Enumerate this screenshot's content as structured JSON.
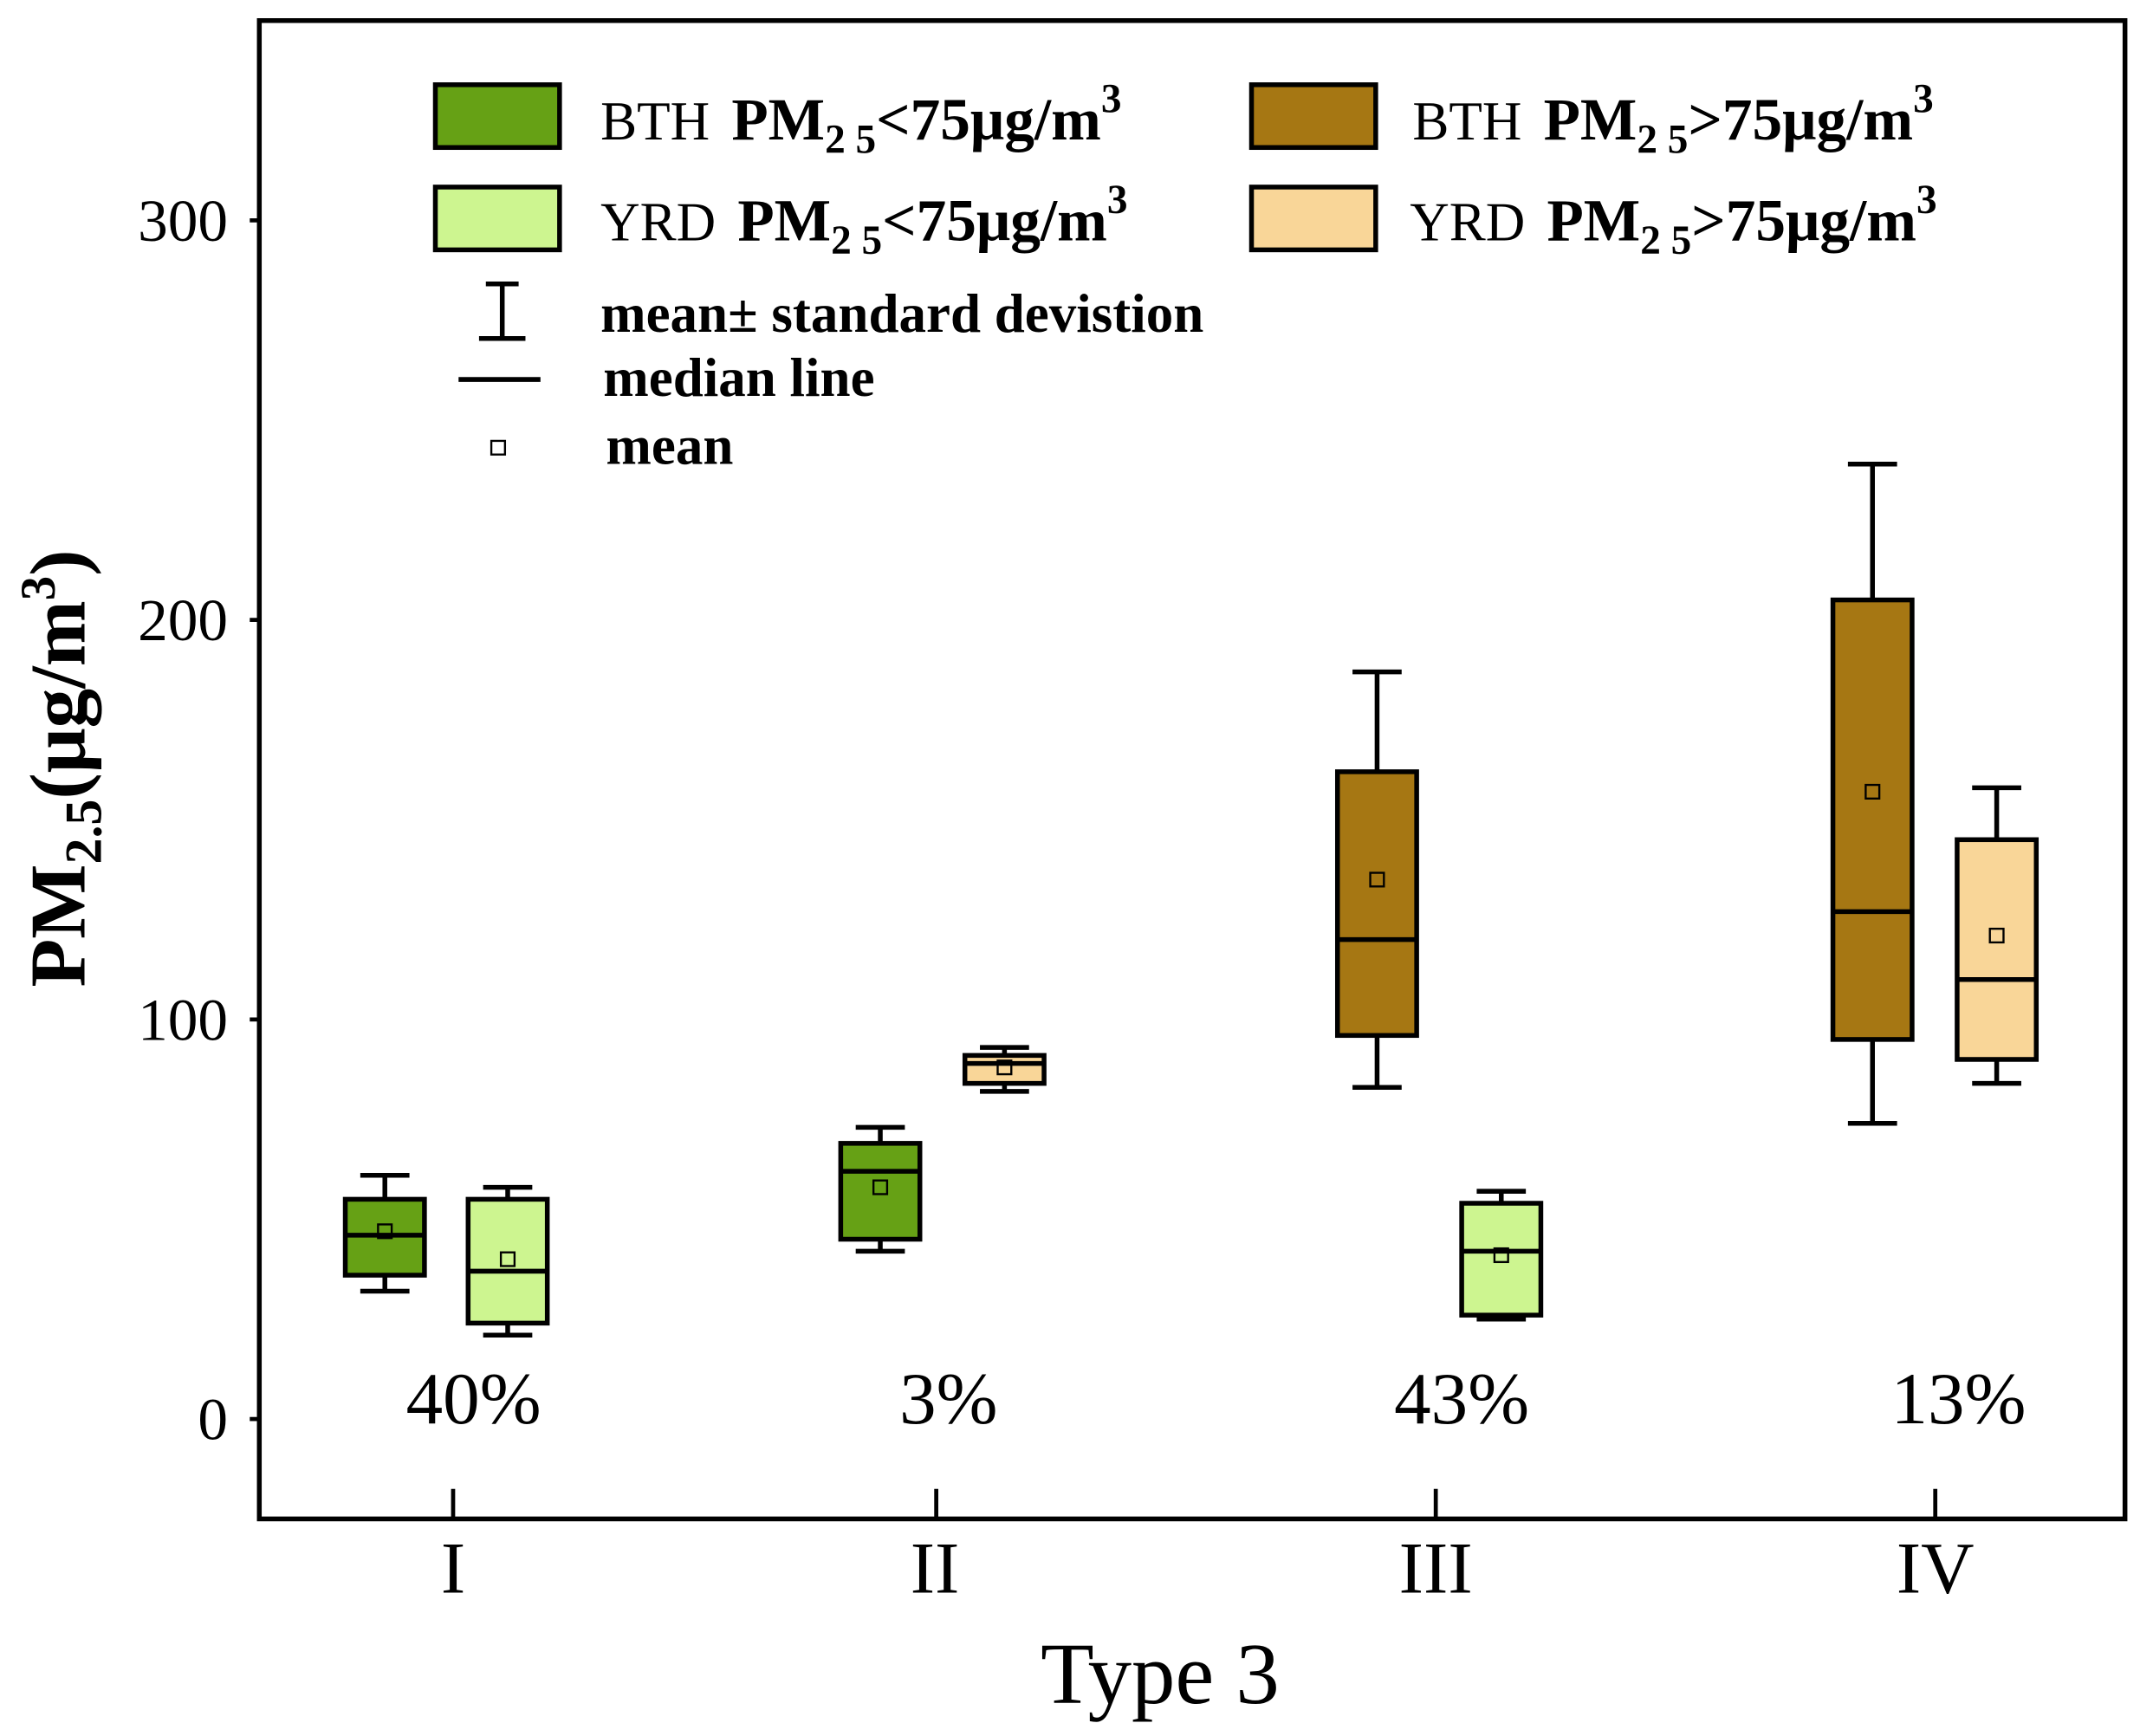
{
  "chart_data": {
    "type": "box",
    "xlabel": "Type 3",
    "ylabel": {
      "main": "PM",
      "sub": "2.5",
      "unit_open": "(μg/m",
      "sup": "3",
      "unit_close": ")"
    },
    "ylim": [
      -25,
      350
    ],
    "yticks": [
      0,
      100,
      200,
      300
    ],
    "categories": [
      "I",
      "II",
      "III",
      "IV"
    ],
    "series": [
      {
        "region": "BTH",
        "main": "PM",
        "sub": "2 5",
        "rest": "<75μg/m",
        "sup": "3",
        "color": "#66a115"
      },
      {
        "region": "BTH",
        "main": "PM",
        "sub": "2 5",
        "rest": ">75μg/m",
        "sup": "3",
        "color": "#a67713"
      },
      {
        "region": "YRD",
        "main": "PM",
        "sub": "2 5",
        "rest": "<75μg/m",
        "sup": "3",
        "color": "#cdf590"
      },
      {
        "region": "YRD",
        "main": "PM",
        "sub": "2 5",
        "rest": ">75μg/m",
        "sup": "3",
        "color": "#f9d698"
      }
    ],
    "legend_items": {
      "sd": "mean± standard devistion",
      "median": "median line",
      "mean": "mean"
    },
    "groups": [
      {
        "percent": "40%",
        "boxes": [
          {
            "series": 0,
            "whisker_low": 32,
            "q1": 36,
            "median": 46,
            "mean": 47,
            "q3": 55,
            "whisker_high": 61
          },
          {
            "series": 2,
            "whisker_low": 21,
            "q1": 24,
            "median": 37,
            "mean": 40,
            "q3": 55,
            "whisker_high": 58
          }
        ]
      },
      {
        "percent": "3%",
        "boxes": [
          {
            "series": 0,
            "whisker_low": 42,
            "q1": 45,
            "median": 62,
            "mean": 58,
            "q3": 69,
            "whisker_high": 73
          },
          {
            "series": 3,
            "whisker_low": 82,
            "q1": 84,
            "median": 89,
            "mean": 88,
            "q3": 91,
            "whisker_high": 93
          }
        ]
      },
      {
        "percent": "43%",
        "boxes": [
          {
            "series": 1,
            "whisker_low": 83,
            "q1": 96,
            "median": 120,
            "mean": 135,
            "q3": 162,
            "whisker_high": 187
          },
          {
            "series": 2,
            "whisker_low": 25,
            "q1": 26,
            "median": 42,
            "mean": 41,
            "q3": 54,
            "whisker_high": 57
          }
        ]
      },
      {
        "percent": "13%",
        "boxes": [
          {
            "series": 1,
            "whisker_low": 74,
            "q1": 95,
            "median": 127,
            "mean": 157,
            "q3": 205,
            "whisker_high": 239
          },
          {
            "series": 3,
            "whisker_low": 84,
            "q1": 90,
            "median": 110,
            "mean": 121,
            "q3": 145,
            "whisker_high": 158
          }
        ]
      }
    ]
  }
}
